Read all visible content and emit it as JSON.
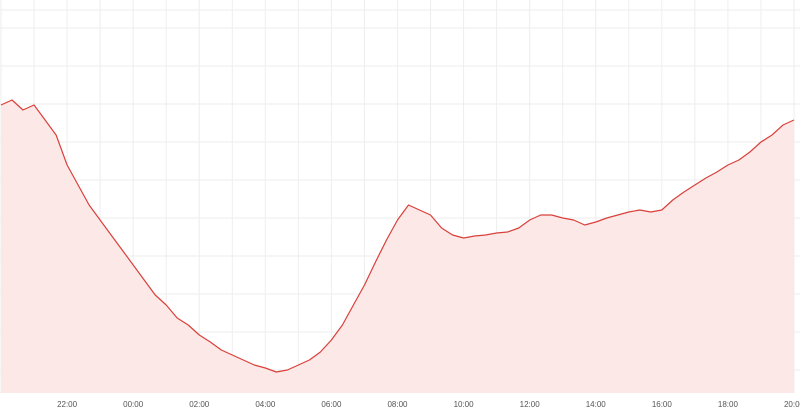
{
  "chart_data": {
    "type": "area",
    "categories": [
      null,
      null,
      null,
      null,
      null,
      null,
      "22:00",
      null,
      null,
      null,
      null,
      null,
      "00:00",
      null,
      null,
      null,
      null,
      null,
      "02:00",
      null,
      null,
      null,
      null,
      null,
      "04:00",
      null,
      null,
      null,
      null,
      null,
      "06:00",
      null,
      null,
      null,
      null,
      null,
      "08:00",
      null,
      null,
      null,
      null,
      null,
      "10:00",
      null,
      null,
      null,
      null,
      null,
      "12:00",
      null,
      null,
      null,
      null,
      null,
      "14:00",
      null,
      null,
      null,
      null,
      null,
      "16:00",
      null,
      null,
      null,
      null,
      null,
      "18:00",
      null,
      null,
      null,
      null,
      null,
      "20:00"
    ],
    "series": [
      {
        "color": "#d9403a",
        "fill": "#fde8e8",
        "values": [
          288,
          293,
          283,
          288,
          273,
          258,
          228,
          208,
          188,
          173,
          158,
          143,
          128,
          113,
          98,
          88,
          75,
          68,
          58,
          51,
          43,
          38,
          33,
          28,
          25,
          21,
          23,
          28,
          33,
          41,
          53,
          68,
          88,
          108,
          131,
          153,
          173,
          188,
          183,
          178,
          165,
          158,
          155,
          157,
          158,
          160,
          161,
          165,
          173,
          178,
          178,
          175,
          173,
          168,
          171,
          175,
          178,
          181,
          183,
          181,
          183,
          193,
          201,
          208,
          215,
          221,
          228,
          233,
          241,
          251,
          258,
          268,
          273
        ]
      }
    ],
    "ylim": [
      0,
      393
    ],
    "yticks": [
      23,
      61,
      99,
      137,
      175,
      213,
      251,
      289,
      327,
      365,
      383
    ],
    "grid": true
  }
}
